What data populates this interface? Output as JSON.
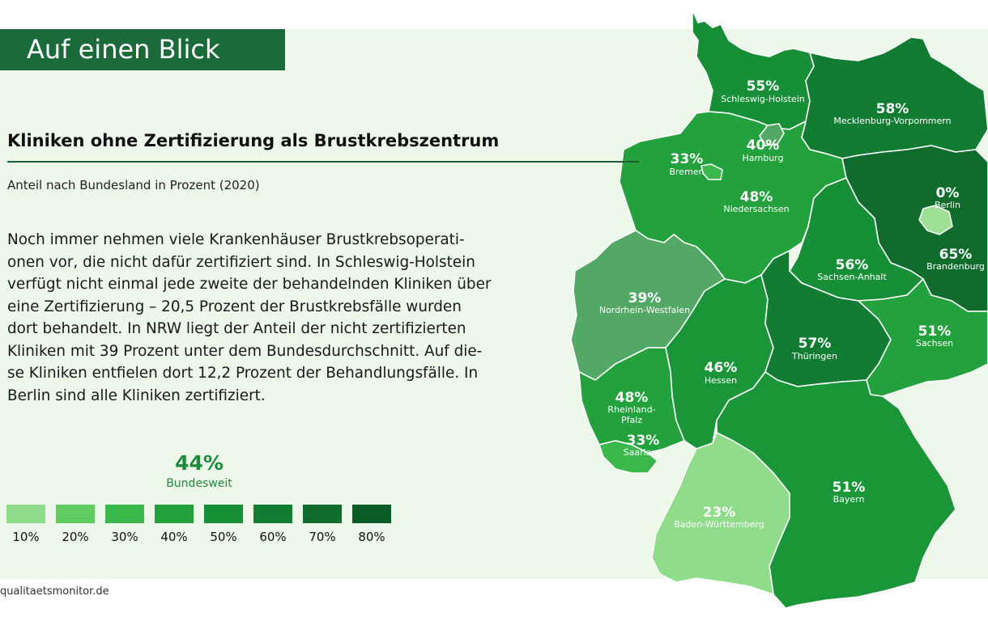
{
  "header": {
    "badge": "Auf einen Blick"
  },
  "title": "Kliniken ohne Zertifizierung als Brustkrebszentrum",
  "subtitle": "Anteil nach Bundesland in Prozent (2020)",
  "body_text": "Noch immer nehmen viele Krankenhäuser Brustkrebsoperati-\nonen vor, die nicht dafür zertifiziert sind. In Schleswig-Holstein\nverfügt nicht einmal jede zweite der behandelnden Kliniken über\neine Zertifizierung – 20,5 Prozent der Brustkrebsfälle wurden\ndort behandelt. In NRW liegt der Anteil der nicht zertifizierten\nKliniken mit 39 Prozent unter dem Bundesdurchschnitt. Auf die-\nse Kliniken entfielen dort 12,2 Prozent der Behandlungsfälle. In\nBerlin sind alle Kliniken zertifiziert.",
  "national": {
    "value": "44%",
    "label": "Bundesweit"
  },
  "legend": [
    {
      "label": "10%",
      "color": "#8fdc8a"
    },
    {
      "label": "20%",
      "color": "#5fcb63"
    },
    {
      "label": "30%",
      "color": "#3ab84b"
    },
    {
      "label": "40%",
      "color": "#22a13d"
    },
    {
      "label": "50%",
      "color": "#178f37"
    },
    {
      "label": "60%",
      "color": "#137c33"
    },
    {
      "label": "70%",
      "color": "#0f6c2d"
    },
    {
      "label": "80%",
      "color": "#0b5d27"
    }
  ],
  "source": "qualitaetsmonitor.de",
  "states": [
    {
      "id": "sh",
      "name": "Schleswig-Holstein",
      "pct": "55%",
      "color": "#178f37"
    },
    {
      "id": "mv",
      "name": "Mecklenburg-Vorpommern",
      "pct": "58%",
      "color": "#137c33"
    },
    {
      "id": "hh",
      "name": "Hamburg",
      "pct": "40%",
      "color": "#54a865"
    },
    {
      "id": "hb",
      "name": "Bremen",
      "pct": "33%",
      "color": "#3ab84b"
    },
    {
      "id": "ni",
      "name": "Niedersachsen",
      "pct": "48%",
      "color": "#22a13d"
    },
    {
      "id": "be",
      "name": "Berlin",
      "pct": "0%",
      "color": "#9fdf96"
    },
    {
      "id": "bb",
      "name": "Brandenburg",
      "pct": "65%",
      "color": "#0f6c2d"
    },
    {
      "id": "st",
      "name": "Sachsen-Anhalt",
      "pct": "56%",
      "color": "#178f37"
    },
    {
      "id": "nw",
      "name": "Nordrhein-Westfalen",
      "pct": "39%",
      "color": "#54a865"
    },
    {
      "id": "he",
      "name": "Hessen",
      "pct": "46%",
      "color": "#1a9639"
    },
    {
      "id": "th",
      "name": "Thüringen",
      "pct": "57%",
      "color": "#137c33"
    },
    {
      "id": "sn",
      "name": "Sachsen",
      "pct": "51%",
      "color": "#22a13d"
    },
    {
      "id": "rp",
      "name": "Rheinland-Pfalz",
      "pct": "48%",
      "color": "#22a13d"
    },
    {
      "id": "sl",
      "name": "Saarland",
      "pct": "33%",
      "color": "#3ab84b"
    },
    {
      "id": "by",
      "name": "Bayern",
      "pct": "51%",
      "color": "#1a9639"
    },
    {
      "id": "bw",
      "name": "Baden-Württemberg",
      "pct": "23%",
      "color": "#8fdc8a"
    }
  ]
}
